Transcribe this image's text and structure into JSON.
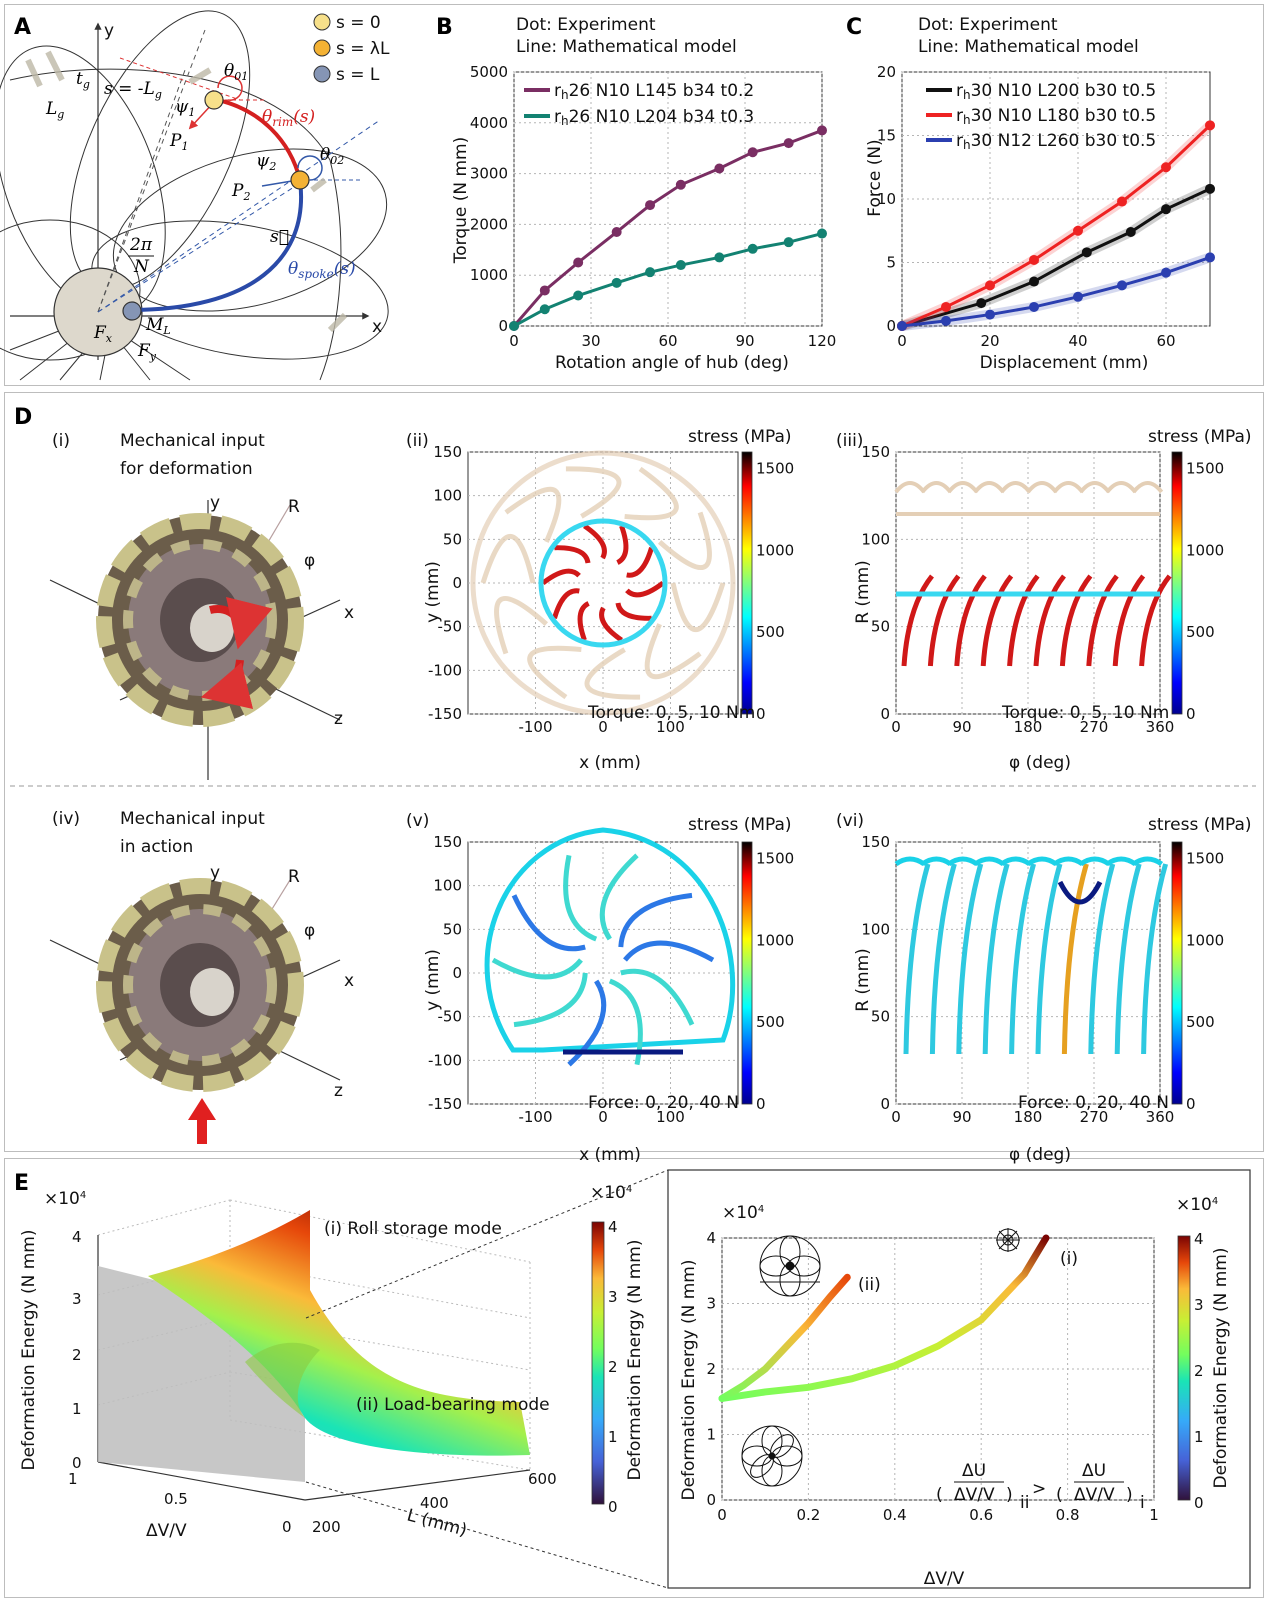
{
  "panels": {
    "A": "A",
    "B": "B",
    "C": "C",
    "D": "D",
    "E": "E"
  },
  "panelA": {
    "legend": [
      "s = 0",
      "s = λL",
      "s = L"
    ],
    "legend_colors": [
      "#f7e08a",
      "#f4b234",
      "#8595b5"
    ],
    "labels": {
      "x": "x",
      "y": "y",
      "tg": "t",
      "tg_sub": "g",
      "Lg": "L",
      "Lg_sub": "g",
      "s_neg": "s = -L",
      "s_neg_sub": "g",
      "theta01": "θ",
      "theta01_sub": "01",
      "theta02": "θ",
      "theta02_sub": "02",
      "psi1": "ψ",
      "psi1_sub": "1",
      "psi2": "ψ",
      "psi2_sub": "2",
      "P1": "P",
      "P1_sub": "1",
      "P2": "P",
      "P2_sub": "2",
      "theta_rim": "θ",
      "theta_rim_sub": "rim",
      "theta_rim_arg": "(s)",
      "theta_spoke": "θ",
      "theta_spoke_sub": "spoke",
      "theta_spoke_arg": "(s)",
      "svec": "s⃗",
      "frac_num": "2π",
      "frac_den": "N",
      "Fx": "F",
      "Fx_sub": "x",
      "Fy": "F",
      "Fy_sub": "y",
      "ML": "M",
      "ML_sub": "L"
    }
  },
  "panelB": {
    "header": [
      "Dot: Experiment",
      "Line: Mathematical model"
    ],
    "ylabel": "Torque (N mm)",
    "xlabel": "Rotation angle of hub (deg)",
    "legend": [
      {
        "prefix": "r",
        "sub": "h",
        "text": "26 N10 L145 b34 t0.2",
        "color": "#7a2e63"
      },
      {
        "prefix": "r",
        "sub": "h",
        "text": "26 N10 L204 b34 t0.3",
        "color": "#138272"
      }
    ]
  },
  "panelC": {
    "header": [
      "Dot: Experiment",
      "Line: Mathematical model"
    ],
    "ylabel": "Force (N)",
    "xlabel": "Displacement (mm)",
    "legend": [
      {
        "prefix": "r",
        "sub": "h",
        "text": "30 N10 L200 b30 t0.5",
        "color": "#111111"
      },
      {
        "prefix": "r",
        "sub": "h",
        "text": "30 N10 L180 b30 t0.5",
        "color": "#ee2222"
      },
      {
        "prefix": "r",
        "sub": "h",
        "text": "30 N12 L260 b30 t0.5",
        "color": "#2b3fb0"
      }
    ]
  },
  "panelD": {
    "sub_i": "(i)",
    "title_i_1": "Mechanical input",
    "title_i_2": "for deformation",
    "sub_iv": "(iv)",
    "title_iv_1": "Mechanical input",
    "title_iv_2": "in action",
    "sub_ii": "(ii)",
    "sub_iii": "(iii)",
    "sub_v": "(v)",
    "sub_vi": "(vi)",
    "stress": "stress (MPa)",
    "axes3d": {
      "x": "x",
      "y": "y",
      "z": "z",
      "R": "R",
      "phi": "φ"
    },
    "xy_xlabel": "x (mm)",
    "xy_ylabel": "y (mm)",
    "rphi_xlabel": "φ (deg)",
    "rphi_ylabel": "R (mm)",
    "torque_note": "Torque: 0, 5, 10 Nm",
    "force_note": "Force: 0, 20, 40 N",
    "xy_xticks": [
      "-100",
      "0",
      "100"
    ],
    "xy_yticks": [
      "150",
      "100",
      "50",
      "0",
      "-50",
      "-100",
      "-150"
    ],
    "rphi_xticks": [
      "0",
      "90",
      "180",
      "270",
      "360"
    ],
    "rphi_yticks": [
      "150",
      "100",
      "50",
      "0"
    ],
    "cbar_ticks": [
      "1500",
      "1000",
      "500",
      "0"
    ]
  },
  "panelE": {
    "roll_label": "(i) Roll storage mode",
    "load_label": "(ii) Load-bearing mode",
    "zlabel": "Deformation Energy (N mm)",
    "exp": "×10",
    "exp_pow": "4",
    "zticks": [
      "4",
      "3",
      "2",
      "1",
      "0"
    ],
    "dv_label": "ΔV/V",
    "L_label": "L (mm)",
    "dv_ticks": [
      "1",
      "0.5",
      "0"
    ],
    "L_ticks": [
      "600",
      "400",
      "200"
    ],
    "cbar_label": "Deformation Energy (N mm)",
    "cbar_ticks": [
      "4",
      "3",
      "2",
      "1",
      "0"
    ],
    "inset_ylabel": "Deformation Energy (N mm)",
    "inset_xlabel": "ΔV/V",
    "inset_xticks": [
      "0",
      "0.2",
      "0.4",
      "0.6",
      "0.8",
      "1"
    ],
    "inset_yticks": [
      "4",
      "3",
      "2",
      "1",
      "0"
    ],
    "curve_i": "(i)",
    "curve_ii": "(ii)",
    "ineq_num": "ΔU",
    "ineq_den": "ΔV/V",
    "ineq_sub_left": "ii",
    "ineq_sub_right": "i",
    "ineq_op": ">"
  },
  "chart_data": [
    {
      "type": "line",
      "panel": "B",
      "xlabel": "Rotation angle of hub (deg)",
      "ylabel": "Torque (N mm)",
      "xlim": [
        0,
        120
      ],
      "ylim": [
        0,
        5000
      ],
      "xticks": [
        0,
        30,
        60,
        90,
        120
      ],
      "yticks": [
        0,
        1000,
        2000,
        3000,
        4000,
        5000
      ],
      "grid": true,
      "legend_position": "top-left",
      "series": [
        {
          "name": "rh26 N10 L145 b34 t0.2",
          "color": "#7a2e63",
          "x": [
            0,
            12,
            25,
            40,
            53,
            65,
            80,
            93,
            107,
            120
          ],
          "y": [
            0,
            700,
            1250,
            1850,
            2380,
            2780,
            3100,
            3420,
            3600,
            3850
          ]
        },
        {
          "name": "rh26 N10 L204 b34 t0.3",
          "color": "#138272",
          "x": [
            0,
            12,
            25,
            40,
            53,
            65,
            80,
            93,
            107,
            120
          ],
          "y": [
            0,
            330,
            600,
            850,
            1060,
            1200,
            1350,
            1520,
            1650,
            1820
          ]
        }
      ]
    },
    {
      "type": "line",
      "panel": "C",
      "xlabel": "Displacement (mm)",
      "ylabel": "Force (N)",
      "xlim": [
        0,
        70
      ],
      "ylim": [
        0,
        20
      ],
      "xticks": [
        0,
        20,
        40,
        60
      ],
      "yticks": [
        0,
        5,
        10,
        15,
        20
      ],
      "grid": true,
      "legend_position": "top-left",
      "series": [
        {
          "name": "rh30 N10 L200 b30 t0.5",
          "color": "#111111",
          "x": [
            0,
            18,
            30,
            42,
            52,
            60,
            70
          ],
          "y": [
            0,
            1.8,
            3.5,
            5.8,
            7.4,
            9.2,
            10.8
          ]
        },
        {
          "name": "rh30 N10 L180 b30 t0.5",
          "color": "#ee2222",
          "x": [
            0,
            10,
            20,
            30,
            40,
            50,
            60,
            70
          ],
          "y": [
            0,
            1.5,
            3.2,
            5.2,
            7.5,
            9.8,
            12.5,
            15.8
          ]
        },
        {
          "name": "rh30 N12 L260 b30 t0.5",
          "color": "#2b3fb0",
          "x": [
            0,
            10,
            20,
            30,
            40,
            50,
            60,
            70
          ],
          "y": [
            0,
            0.4,
            0.9,
            1.5,
            2.3,
            3.2,
            4.2,
            5.4
          ]
        }
      ]
    },
    {
      "type": "line",
      "panel": "E-inset",
      "xlabel": "ΔV/V",
      "ylabel": "Deformation Energy (N mm)",
      "xlim": [
        0,
        1
      ],
      "ylim": [
        0,
        4
      ],
      "xticks": [
        0,
        0.2,
        0.4,
        0.6,
        0.8,
        1
      ],
      "yticks": [
        0,
        1,
        2,
        3,
        4
      ],
      "grid": true,
      "series": [
        {
          "name": "(i)",
          "x": [
            0,
            0.1,
            0.2,
            0.3,
            0.4,
            0.5,
            0.6,
            0.7,
            0.75
          ],
          "y": [
            1.55,
            1.65,
            1.72,
            1.85,
            2.05,
            2.35,
            2.75,
            3.45,
            4.0
          ]
        },
        {
          "name": "(ii)",
          "x": [
            0,
            0.05,
            0.1,
            0.15,
            0.2,
            0.25,
            0.29
          ],
          "y": [
            1.55,
            1.75,
            2.0,
            2.35,
            2.7,
            3.1,
            3.4
          ]
        }
      ]
    }
  ]
}
